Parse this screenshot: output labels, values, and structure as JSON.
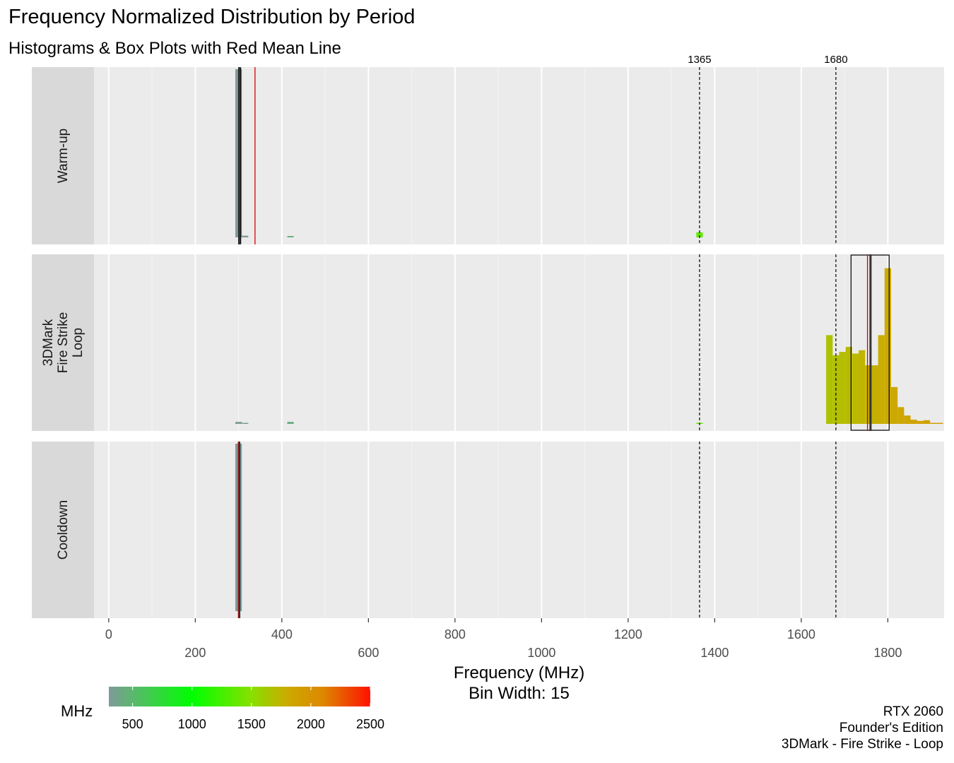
{
  "title": "Frequency Normalized Distribution by Period",
  "subtitle": "Histograms & Box Plots with Red Mean Line",
  "caption": [
    "RTX 2060",
    "Founder's Edition",
    "3DMark - Fire Strike - Loop"
  ],
  "chart_data": {
    "type": "histogram",
    "xlabel": "Frequency (MHz)",
    "xlabel2": "Bin Width: 15",
    "xlim": [
      -34,
      1930
    ],
    "x_ticks_upper": [
      0,
      400,
      800,
      1200,
      1600
    ],
    "x_ticks_lower": [
      200,
      600,
      1000,
      1400,
      1800
    ],
    "bin_width": 15,
    "reference_lines": [
      {
        "x": 1365,
        "label": "1365"
      },
      {
        "x": 1680,
        "label": "1680"
      }
    ],
    "colors": {
      "mean": "#d40000",
      "box": "#000000",
      "median": "#333333",
      "panel_bg": "#ebebeb",
      "strip_bg": "#d9d9d9",
      "grid": "#ffffff"
    },
    "panels": [
      {
        "name": "Warm-up",
        "bins": [
          {
            "x": 300,
            "y": 1.0
          },
          {
            "x": 315,
            "y": 0.01
          },
          {
            "x": 420,
            "y": 0.008
          },
          {
            "x": 1365,
            "y": 0.03
          }
        ],
        "box": {
          "q1": 300,
          "median": 302,
          "q3": 305
        },
        "mean": 338
      },
      {
        "name": "3DMark\nFire Strike\nLoop",
        "bins": [
          {
            "x": 300,
            "y": 0.012
          },
          {
            "x": 315,
            "y": 0.006
          },
          {
            "x": 420,
            "y": 0.012
          },
          {
            "x": 1365,
            "y": 0.005
          },
          {
            "x": 1665,
            "y": 0.53
          },
          {
            "x": 1680,
            "y": 0.41
          },
          {
            "x": 1695,
            "y": 0.43
          },
          {
            "x": 1710,
            "y": 0.46
          },
          {
            "x": 1725,
            "y": 0.42
          },
          {
            "x": 1740,
            "y": 0.44
          },
          {
            "x": 1755,
            "y": 0.35
          },
          {
            "x": 1770,
            "y": 0.35
          },
          {
            "x": 1785,
            "y": 0.53
          },
          {
            "x": 1800,
            "y": 0.93
          },
          {
            "x": 1815,
            "y": 0.22
          },
          {
            "x": 1830,
            "y": 0.1
          },
          {
            "x": 1845,
            "y": 0.05
          },
          {
            "x": 1860,
            "y": 0.025
          },
          {
            "x": 1875,
            "y": 0.018
          },
          {
            "x": 1890,
            "y": 0.022
          },
          {
            "x": 1905,
            "y": 0.006
          },
          {
            "x": 1920,
            "y": 0.004
          }
        ],
        "box": {
          "q1": 1715,
          "median": 1760,
          "q3": 1803
        },
        "mean": 1753
      },
      {
        "name": "Cooldown",
        "bins": [
          {
            "x": 300,
            "y": 1.0
          }
        ],
        "box": {
          "q1": 300,
          "median": 301,
          "q3": 303
        },
        "mean": 301
      }
    ],
    "legend": {
      "title": "MHz",
      "type": "colorbar",
      "range": [
        300,
        2500
      ],
      "breaks": [
        500,
        1000,
        1500,
        2000,
        2500
      ],
      "gradient": [
        {
          "v": 300,
          "color": "#7f9a9a"
        },
        {
          "v": 1000,
          "color": "#00ff00"
        },
        {
          "v": 1500,
          "color": "#88e000"
        },
        {
          "v": 1800,
          "color": "#ccaa00"
        },
        {
          "v": 2100,
          "color": "#dd8800"
        },
        {
          "v": 2500,
          "color": "#ff1100"
        }
      ]
    }
  }
}
